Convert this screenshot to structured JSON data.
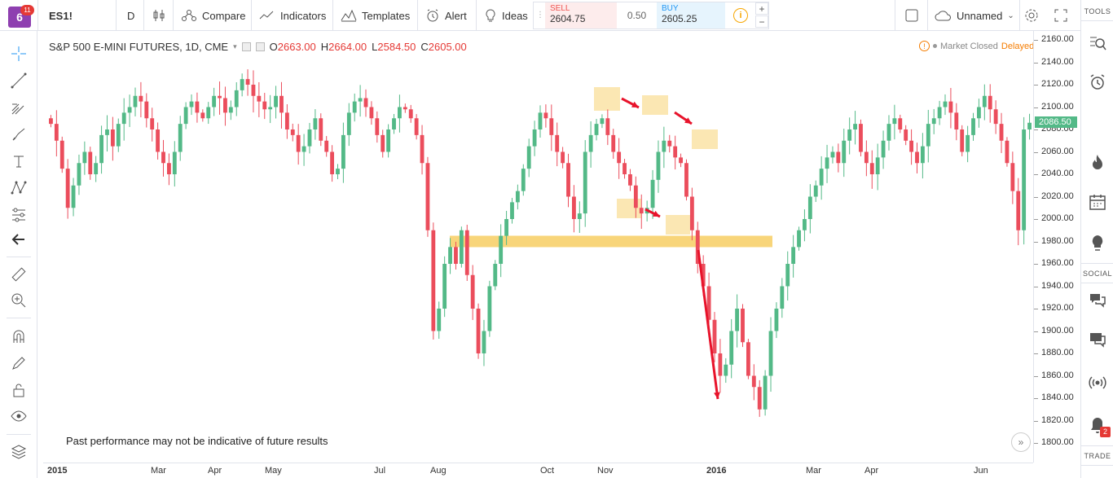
{
  "topbar": {
    "logo_text": "6",
    "logo_badge": "11",
    "symbol": "ES1!",
    "interval": "D",
    "compare": "Compare",
    "indicators": "Indicators",
    "templates": "Templates",
    "alert": "Alert",
    "ideas": "Ideas",
    "sell_label": "SELL",
    "sell_price": "2604.75",
    "spread": "0.50",
    "buy_label": "BUY",
    "buy_price": "2605.25",
    "info": "i",
    "plus": "+",
    "minus": "−",
    "layout_name": "Unnamed"
  },
  "legend": {
    "title": "S&P 500 E-MINI FUTURES, 1D, CME",
    "o_key": "O",
    "o_val": "2663.00",
    "h_key": "H",
    "h_val": "2664.00",
    "l_key": "L",
    "l_val": "2584.50",
    "c_key": "C",
    "c_val": "2605.00"
  },
  "status": {
    "market": "Market Closed",
    "delayed": "Delayed"
  },
  "disclaimer": "Past performance may not be indicative of future results",
  "price_axis": {
    "ticks": [
      "2160.00",
      "2140.00",
      "2120.00",
      "2100.00",
      "2080.00",
      "2060.00",
      "2040.00",
      "2020.00",
      "2000.00",
      "1980.00",
      "1960.00",
      "1940.00",
      "1920.00",
      "1900.00",
      "1880.00",
      "1860.00",
      "1840.00",
      "1820.00",
      "1800.00"
    ],
    "current_price": "2086.50"
  },
  "time_axis": {
    "labels": [
      "2015",
      "Mar",
      "Apr",
      "May",
      "Jul",
      "Aug",
      "Oct",
      "Nov",
      "2016",
      "Mar",
      "Apr",
      "Jun"
    ]
  },
  "right_panel": {
    "tools": "TOOLS",
    "social": "SOCIAL",
    "trade": "TRADE",
    "notif_count": "2"
  },
  "colors": {
    "up": "#53b987",
    "down": "#eb4d5c",
    "zone": "#f5c342",
    "arrow": "#e8132b",
    "accent": "#8e3fb0"
  },
  "chart_data": {
    "type": "candlestick",
    "symbol": "S&P 500 E-MINI FUTURES",
    "ylim": [
      1800,
      2160
    ],
    "support_level": 1980,
    "series": [
      {
        "closes": [
          2085,
          2070,
          2045,
          2010,
          2030,
          2050,
          2060,
          2040,
          2050,
          2075,
          2080,
          2065,
          2085,
          2095,
          2100,
          2110,
          2105,
          2090,
          2080,
          2060,
          2050,
          2040,
          2060,
          2085,
          2100,
          2105,
          2095,
          2090,
          2100,
          2110,
          2108,
          2095,
          2100,
          2115,
          2125,
          2120,
          2110,
          2105,
          2098,
          2100,
          2110,
          2095,
          2080,
          2075,
          2060,
          2065,
          2080,
          2090,
          2070,
          2060,
          2040,
          2045,
          2075,
          2095,
          2105,
          2108,
          2100,
          2090,
          2075,
          2060,
          2080,
          2090,
          2100,
          2098,
          2090,
          2075,
          2050,
          1990,
          1900,
          1920,
          1960,
          1975,
          1960,
          1990,
          1950,
          1920,
          1880,
          1900,
          1940,
          1960,
          1985,
          2000,
          2015,
          2025,
          2045,
          2065,
          2080,
          2095,
          2090,
          2075,
          2060,
          2050,
          2020,
          2000,
          2005,
          2060,
          2075,
          2085,
          2090,
          2075,
          2060,
          2050,
          2040,
          2030,
          2010,
          2005,
          2010,
          2035,
          2060,
          2070,
          2065,
          2055,
          2050,
          2020,
          1990,
          1960,
          1940,
          1910,
          1880,
          1860,
          1870,
          1900,
          1920,
          1890,
          1860,
          1850,
          1830,
          1860,
          1900,
          1920,
          1940,
          1960,
          1975,
          1990,
          2000,
          2020,
          2030,
          2045,
          2055,
          2060,
          2050,
          2070,
          2080,
          2085,
          2060,
          2050,
          2040,
          2055,
          2070,
          2085,
          2090,
          2080,
          2070,
          2060,
          2050,
          2065,
          2085,
          2090,
          2100,
          2105,
          2095,
          2080,
          2060,
          2075,
          2090,
          2100,
          2110,
          2098,
          2085,
          2070,
          2050,
          2025,
          1990,
          2080,
          2086
        ]
      }
    ],
    "annotations": [
      {
        "kind": "zone",
        "price": 1980
      },
      {
        "kind": "box",
        "label": "top1"
      },
      {
        "kind": "box",
        "label": "top2"
      },
      {
        "kind": "box",
        "label": "top3"
      }
    ]
  }
}
